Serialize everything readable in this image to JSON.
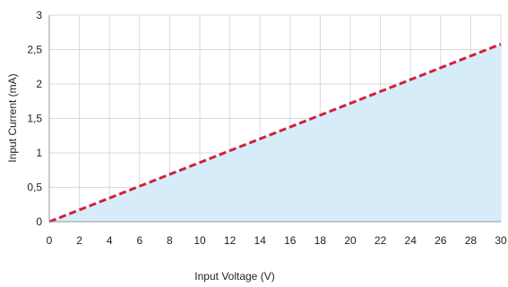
{
  "chart_data": {
    "type": "area",
    "title": "",
    "xlabel": "Input Voltage (V)",
    "ylabel": "Input Current (mA)",
    "xlim": [
      0,
      30
    ],
    "ylim": [
      0,
      3
    ],
    "x_ticks": [
      {
        "value": 0,
        "label": "0"
      },
      {
        "value": 2,
        "label": "2"
      },
      {
        "value": 4,
        "label": "4"
      },
      {
        "value": 6,
        "label": "6"
      },
      {
        "value": 8,
        "label": "8"
      },
      {
        "value": 10,
        "label": "10"
      },
      {
        "value": 12,
        "label": "12"
      },
      {
        "value": 14,
        "label": "14"
      },
      {
        "value": 16,
        "label": "16"
      },
      {
        "value": 18,
        "label": "18"
      },
      {
        "value": 20,
        "label": "20"
      },
      {
        "value": 22,
        "label": "22"
      },
      {
        "value": 24,
        "label": "24"
      },
      {
        "value": 26,
        "label": "26"
      },
      {
        "value": 28,
        "label": "28"
      },
      {
        "value": 30,
        "label": "30"
      }
    ],
    "y_ticks": [
      {
        "value": 0,
        "label": "0"
      },
      {
        "value": 0.5,
        "label": "0,5"
      },
      {
        "value": 1,
        "label": "1"
      },
      {
        "value": 1.5,
        "label": "1,5"
      },
      {
        "value": 2,
        "label": "2"
      },
      {
        "value": 2.5,
        "label": "2,5"
      },
      {
        "value": 3,
        "label": "3"
      }
    ],
    "grid": true,
    "series": [
      {
        "x": [
          0,
          30
        ],
        "y": [
          0,
          2.58
        ],
        "line_color": "#d0213a",
        "line_style": "dashed",
        "fill_color": "#d6ecf9"
      }
    ]
  }
}
